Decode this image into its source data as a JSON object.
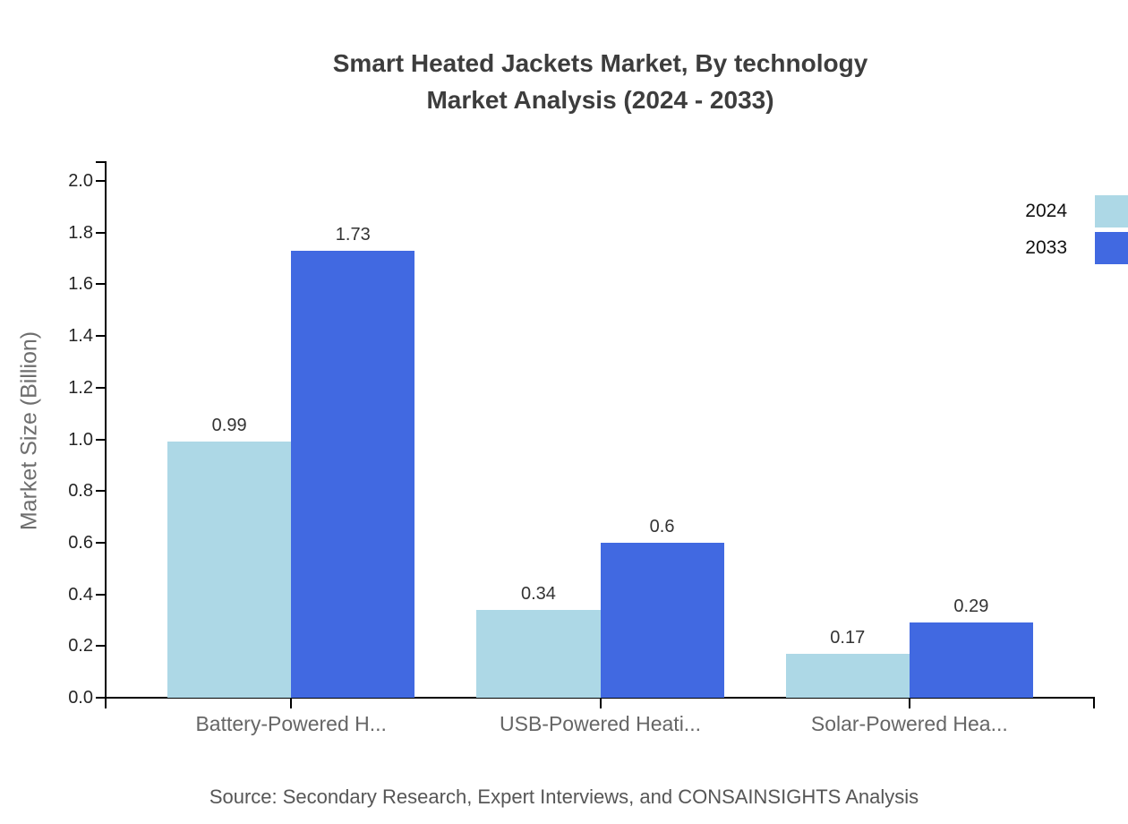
{
  "chart": {
    "title_line1": "Smart Heated Jackets Market, By technology",
    "title_line2": "Market Analysis (2024 - 2033)",
    "source": "Source: Secondary Research, Expert Interviews, and CONSAINSIGHTS Analysis"
  },
  "chart_data": {
    "type": "bar",
    "title": "Smart Heated Jackets Market, By technology Market Analysis (2024 - 2033)",
    "categories": [
      "Battery-Powered H...",
      "USB-Powered Heati...",
      "Solar-Powered Hea..."
    ],
    "series": [
      {
        "name": "2024",
        "color": "#ADD8E6",
        "values": [
          0.99,
          0.34,
          0.17
        ],
        "value_labels": [
          "0.99",
          "0.34",
          "0.17"
        ]
      },
      {
        "name": "2033",
        "color": "#4169E1",
        "values": [
          1.73,
          0.6,
          0.29
        ],
        "value_labels": [
          "1.73",
          "0.6",
          "0.29"
        ]
      }
    ],
    "xlabel": "",
    "ylabel": "Market Size (Billion)",
    "ylim": [
      0.0,
      2.0
    ],
    "yticks": [
      "0.0",
      "0.2",
      "0.4",
      "0.6",
      "0.8",
      "1.0",
      "1.2",
      "1.4",
      "1.6",
      "1.8",
      "2.0"
    ],
    "grid": false,
    "legend_position": "top-right",
    "colors": {
      "axis": "#000000",
      "title_text": "#3d3d3d",
      "tick_text": "#262626",
      "category_text": "#666666",
      "value_text": "#333333",
      "source_text": "#565656"
    }
  }
}
